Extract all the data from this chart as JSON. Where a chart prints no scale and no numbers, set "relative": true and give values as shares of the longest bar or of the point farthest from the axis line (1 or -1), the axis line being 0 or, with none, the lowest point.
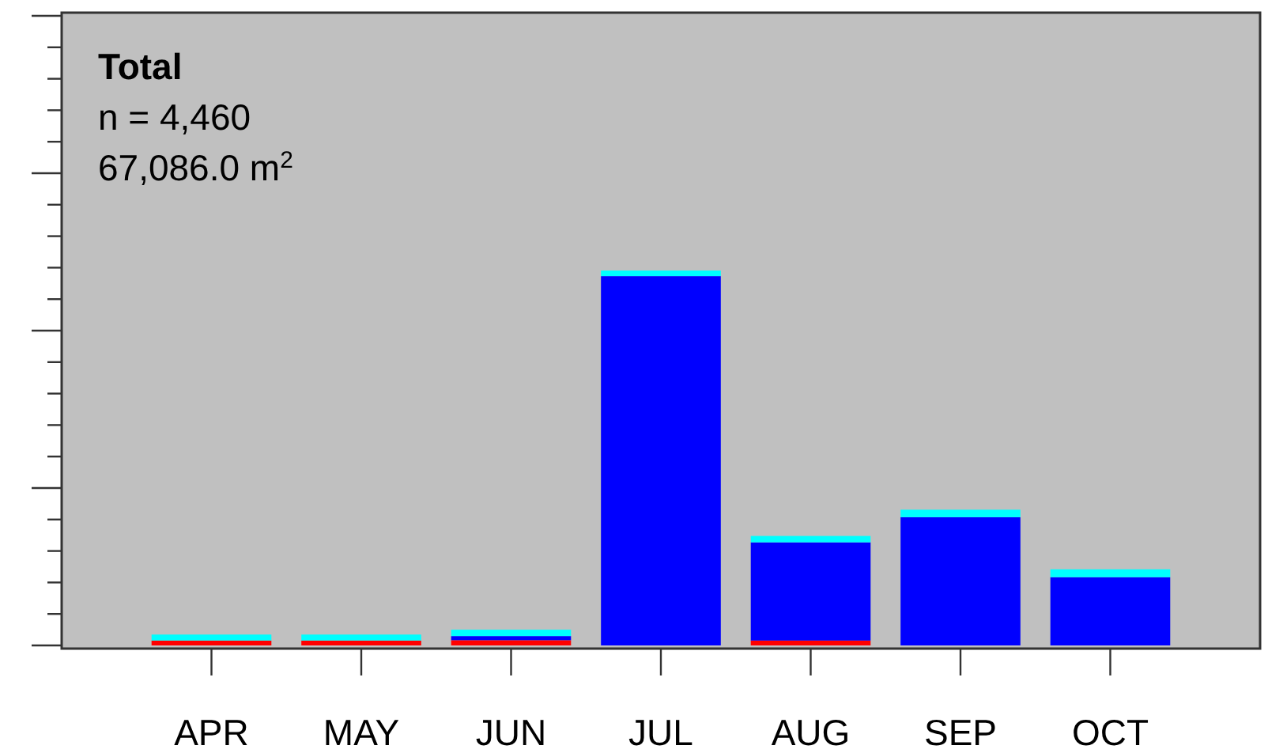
{
  "chart_data": {
    "type": "bar",
    "title": "Total",
    "annotations": [
      "n = 4,460",
      "67,086.0 m$^{2}$"
    ],
    "categories": [
      "APR",
      "MAY",
      "JUN",
      "JUL",
      "AUG",
      "SEP",
      "OCT"
    ],
    "stacked": true,
    "relative": true,
    "series": [
      {
        "color": "#ff0000",
        "values": [
          0.013,
          0.013,
          0.014,
          0,
          0.013,
          0,
          0
        ]
      },
      {
        "color": "#0000ff",
        "values": [
          0,
          0,
          0.011,
          0.985,
          0.262,
          0.342,
          0.182
        ]
      },
      {
        "color": "#00ffff",
        "values": [
          0.016,
          0.016,
          0.017,
          0.015,
          0.017,
          0.02,
          0.021
        ]
      }
    ]
  }
}
